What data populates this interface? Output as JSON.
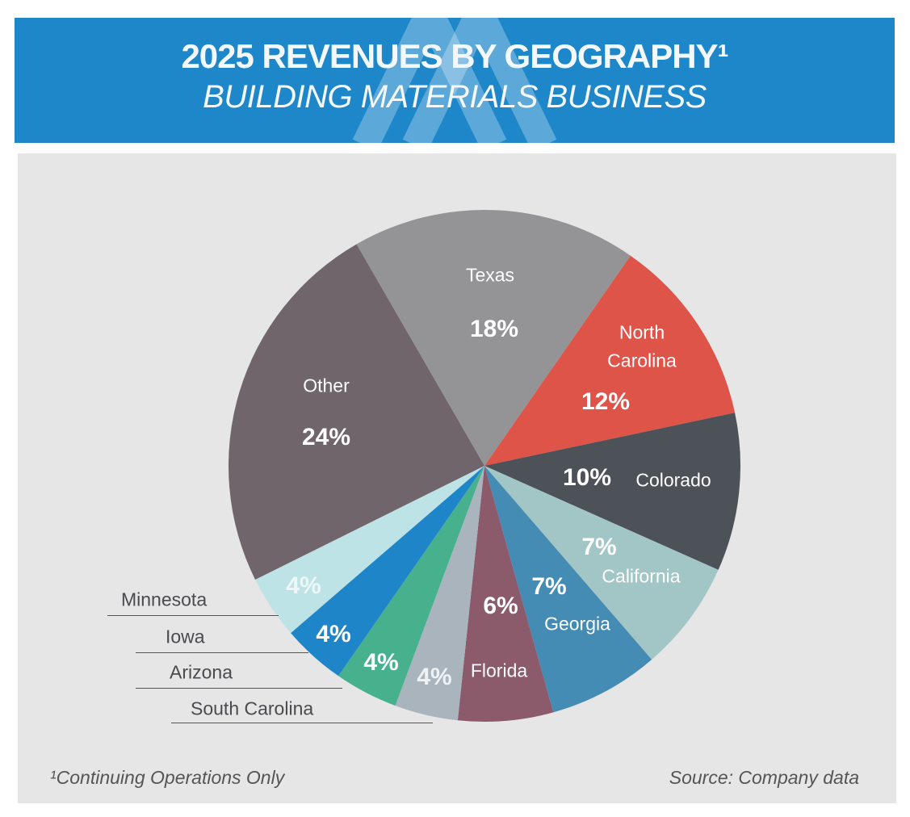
{
  "header": {
    "title": "2025 REVENUES BY GEOGRAPHY¹",
    "subtitle": "BUILDING MATERIALS BUSINESS",
    "background_color": "#1e87c9"
  },
  "chart_data": {
    "type": "pie",
    "start_angle_deg": -30,
    "direction": "clockwise",
    "slices": [
      {
        "label": "Texas",
        "value": 18,
        "display": "18%",
        "color": "#949497"
      },
      {
        "label": "North Carolina",
        "value": 12,
        "display": "12%",
        "color": "#de5449"
      },
      {
        "label": "Colorado",
        "value": 10,
        "display": "10%",
        "color": "#4d5158"
      },
      {
        "label": "California",
        "value": 7,
        "display": "7%",
        "color": "#a2c6c6"
      },
      {
        "label": "Georgia",
        "value": 7,
        "display": "7%",
        "color": "#458cb5"
      },
      {
        "label": "Florida",
        "value": 6,
        "display": "6%",
        "color": "#8b5a6b"
      },
      {
        "label": "South Carolina",
        "value": 4,
        "display": "4%",
        "color": "#aab4bd"
      },
      {
        "label": "Arizona",
        "value": 4,
        "display": "4%",
        "color": "#47b18e"
      },
      {
        "label": "Iowa",
        "value": 4,
        "display": "4%",
        "color": "#1e86c8"
      },
      {
        "label": "Minnesota",
        "value": 4,
        "display": "4%",
        "color": "#bde3e6"
      },
      {
        "label": "Other",
        "value": 24,
        "display": "24%",
        "color": "#6f656b"
      }
    ],
    "nc_line1": "North",
    "nc_line2": "Carolina"
  },
  "footer": {
    "note": "¹Continuing Operations Only",
    "source": "Source: Company data"
  }
}
